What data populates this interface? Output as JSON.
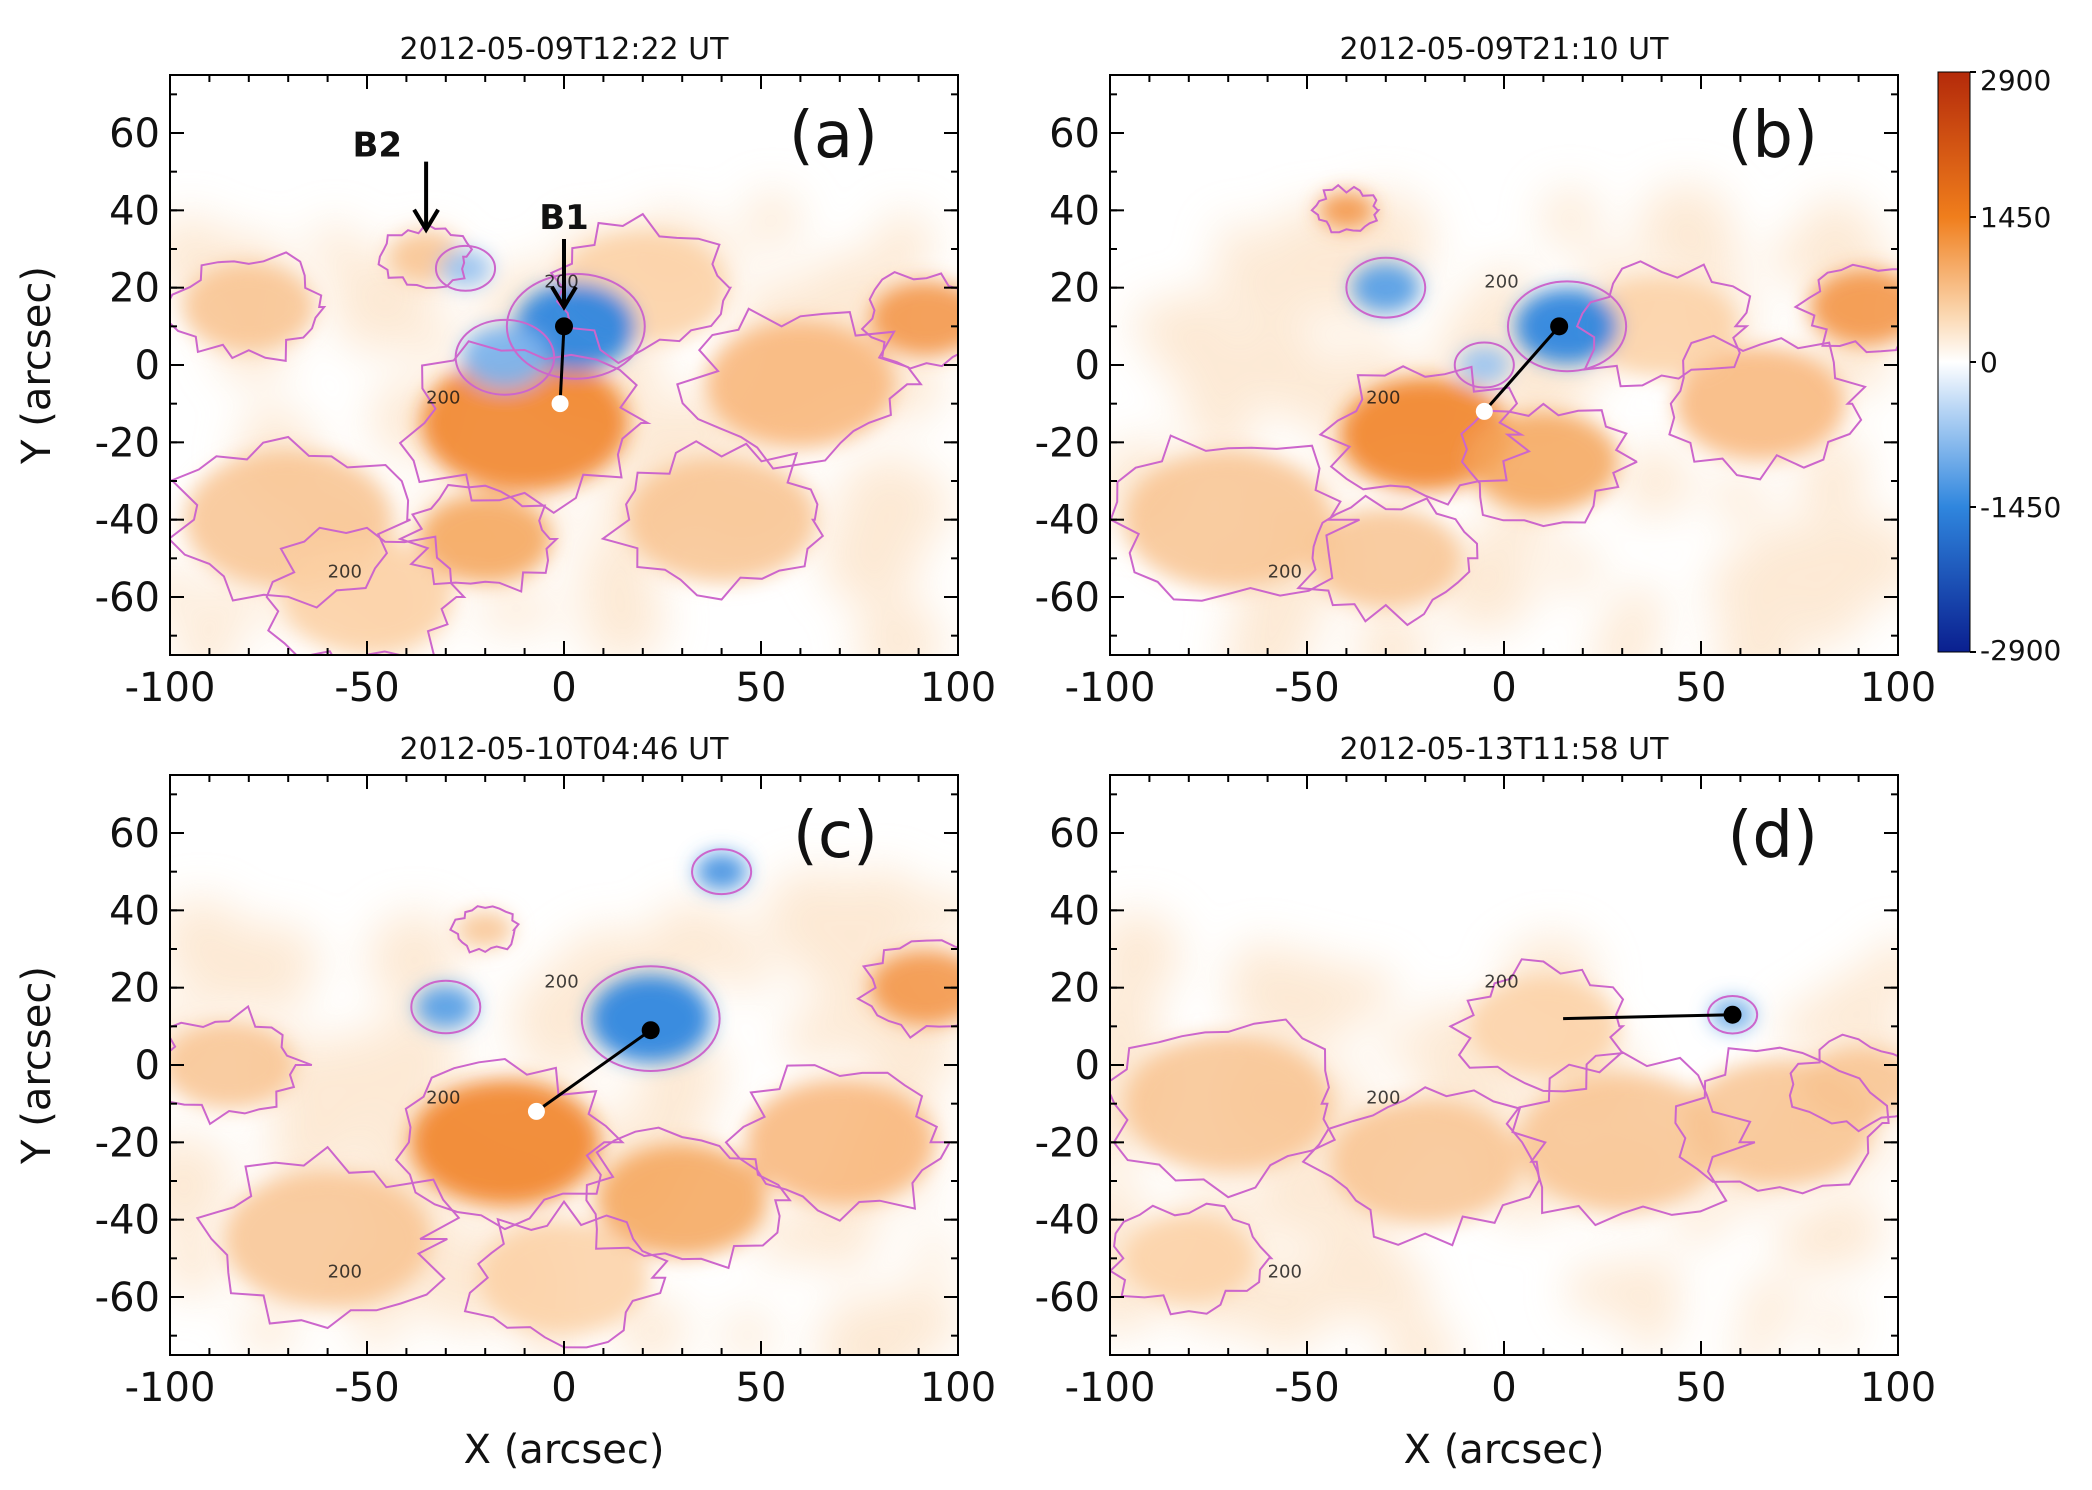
{
  "colors": {
    "positive_strong": "#b42a0a",
    "positive_mid": "#f07e1c",
    "positive_weak": "#fbd8b2",
    "zero": "#ffffff",
    "negative_weak": "#b9d6f5",
    "negative_mid": "#2f86de",
    "negative_strong": "#0a1f8f",
    "contour": "#cc66cc",
    "polarity_line": "#000000"
  },
  "colorbar": {
    "labels": [
      "2900",
      "1450",
      "0",
      "-1450",
      "-2900"
    ],
    "values": [
      2900,
      1450,
      0,
      -1450,
      -2900
    ],
    "min": -2900,
    "max": 2900
  },
  "contour_label": "200",
  "chart_data": [
    {
      "type": "heatmap",
      "panel": "(a)",
      "title": "2012-05-09T12:22 UT",
      "xlabel": "",
      "ylabel": "Y (arcsec)",
      "xlim": [
        -100,
        100
      ],
      "ylim": [
        -75,
        75
      ],
      "xticks": [
        -100,
        -50,
        0,
        50,
        100
      ],
      "yticks": [
        -60,
        -40,
        -20,
        0,
        20,
        40,
        60
      ],
      "polarity_line": {
        "neg_centroid": [
          0,
          10
        ],
        "pos_centroid": [
          -1,
          -10
        ]
      },
      "annotations": [
        {
          "label": "B2",
          "x": -35,
          "y": 50
        },
        {
          "label": "B1",
          "x": 0,
          "y": 30
        }
      ]
    },
    {
      "type": "heatmap",
      "panel": "(b)",
      "title": "2012-05-09T21:10 UT",
      "xlabel": "",
      "ylabel": "",
      "xlim": [
        -100,
        100
      ],
      "ylim": [
        -75,
        75
      ],
      "xticks": [
        -100,
        -50,
        0,
        50,
        100
      ],
      "yticks": [
        -60,
        -40,
        -20,
        0,
        20,
        40,
        60
      ],
      "polarity_line": {
        "neg_centroid": [
          14,
          10
        ],
        "pos_centroid": [
          -5,
          -12
        ]
      },
      "annotations": []
    },
    {
      "type": "heatmap",
      "panel": "(c)",
      "title": "2012-05-10T04:46 UT",
      "xlabel": "X (arcsec)",
      "ylabel": "Y (arcsec)",
      "xlim": [
        -100,
        100
      ],
      "ylim": [
        -75,
        75
      ],
      "xticks": [
        -100,
        -50,
        0,
        50,
        100
      ],
      "yticks": [
        -60,
        -40,
        -20,
        0,
        20,
        40,
        60
      ],
      "polarity_line": {
        "neg_centroid": [
          22,
          9
        ],
        "pos_centroid": [
          -7,
          -12
        ]
      },
      "annotations": []
    },
    {
      "type": "heatmap",
      "panel": "(d)",
      "title": "2012-05-13T11:58 UT",
      "xlabel": "X (arcsec)",
      "ylabel": "",
      "xlim": [
        -100,
        100
      ],
      "ylim": [
        -75,
        75
      ],
      "xticks": [
        -100,
        -50,
        0,
        50,
        100
      ],
      "yticks": [
        -60,
        -40,
        -20,
        0,
        20,
        40,
        60
      ],
      "polarity_line": {
        "neg_centroid": [
          58,
          13
        ],
        "pos_centroid": [
          15,
          12
        ]
      },
      "annotations": []
    }
  ]
}
